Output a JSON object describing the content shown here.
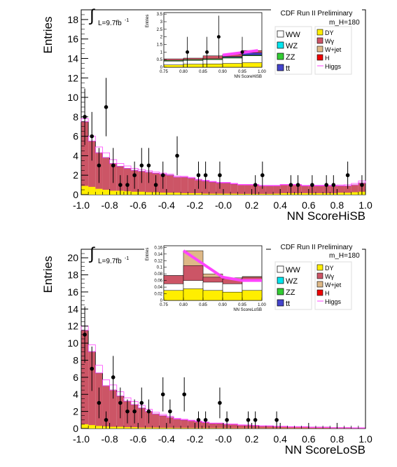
{
  "colors": {
    "WW": "#ffffff",
    "WZ": "#00e5ee",
    "ZZ": "#33cc33",
    "tt": "#4444cc",
    "DY": "#ffee00",
    "Wg": "#cc5566",
    "Wjet": "#deb887",
    "H": "#ee0000",
    "Higgs": "#ff44ff",
    "data": "#000000"
  },
  "chart_data": [
    {
      "type": "bar",
      "panel": "HiSB",
      "header": "CDF Run II Preliminary",
      "mass": "m_H=180",
      "lumi": "L=9.7fb",
      "lumi_sup": "-1",
      "xlabel": "NN ScoreHiSB",
      "ylabel": "Entries",
      "xlim": [
        -1.0,
        1.0
      ],
      "ylim": [
        0,
        19
      ],
      "x_ticks": [
        "-1.0",
        "-0.8",
        "-0.6",
        "-0.4",
        "-0.2",
        "-0.0",
        "0.2",
        "0.4",
        "0.6",
        "0.8",
        "1.0"
      ],
      "x_tick_values": [
        -1.0,
        -0.8,
        -0.6,
        -0.4,
        -0.2,
        0.0,
        0.2,
        0.4,
        0.6,
        0.8,
        1.0
      ],
      "y_ticks": [
        "0",
        "2",
        "4",
        "6",
        "8",
        "10",
        "12",
        "14",
        "16",
        "18"
      ],
      "y_tick_values": [
        0,
        2,
        4,
        6,
        8,
        10,
        12,
        14,
        16,
        18
      ],
      "bins": [
        -1.0,
        -0.95,
        -0.9,
        -0.85,
        -0.8,
        -0.75,
        -0.7,
        -0.65,
        -0.6,
        -0.55,
        -0.5,
        -0.45,
        -0.4,
        -0.35,
        -0.3,
        -0.25,
        -0.2,
        -0.15,
        -0.1,
        -0.05,
        0.0,
        0.05,
        0.1,
        0.15,
        0.2,
        0.25,
        0.3,
        0.35,
        0.4,
        0.45,
        0.5,
        0.55,
        0.6,
        0.65,
        0.7,
        0.75,
        0.8,
        0.85,
        0.9,
        0.95,
        1.0
      ],
      "bkg_total": [
        7.5,
        5.5,
        4.3,
        3.8,
        3.2,
        2.9,
        2.7,
        2.5,
        2.4,
        2.3,
        2.2,
        2.1,
        2.0,
        1.8,
        1.8,
        1.7,
        1.5,
        1.4,
        1.3,
        1.2,
        1.2,
        1.1,
        1.0,
        1.0,
        1.0,
        0.9,
        0.9,
        0.9,
        1.0,
        1.0,
        1.0,
        0.9,
        0.9,
        0.9,
        0.9,
        0.9,
        0.9,
        0.9,
        1.0,
        1.2
      ],
      "dy_stack": [
        0.9,
        0.8,
        0.6,
        0.5,
        0.4,
        0.4,
        0.35,
        0.3,
        0.3,
        0.25,
        0.25,
        0.2,
        0.2,
        0.2,
        0.15,
        0.15,
        0.15,
        0.1,
        0.1,
        0.1,
        0.1,
        0.1,
        0.08,
        0.08,
        0.08,
        0.08,
        0.08,
        0.1,
        0.15,
        0.15,
        0.15,
        0.15,
        0.15,
        0.15,
        0.15,
        0.15,
        0.2,
        0.2,
        0.25,
        0.3
      ],
      "signal": [
        0.3,
        0.5,
        0.6,
        0.5,
        0.4,
        0.3,
        0.25,
        0.2,
        0.18,
        0.15,
        0.12,
        0.12,
        0.1,
        0.1,
        0.08,
        0.08,
        0.08,
        0.08,
        0.06,
        0.06,
        0.06,
        0.06,
        0.05,
        0.05,
        0.05,
        0.05,
        0.05,
        0.05,
        0.05,
        0.05,
        0.05,
        0.05,
        0.06,
        0.06,
        0.07,
        0.08,
        0.1,
        0.12,
        0.15,
        0.2
      ],
      "data_points": [
        {
          "x": -0.975,
          "y": 8,
          "err": 2.9
        },
        {
          "x": -0.925,
          "y": 6,
          "err": 2.5
        },
        {
          "x": -0.875,
          "y": 3,
          "err": 1.8
        },
        {
          "x": -0.825,
          "y": 9,
          "err": 3.0
        },
        {
          "x": -0.775,
          "y": 3,
          "err": 1.8
        },
        {
          "x": -0.725,
          "y": 1,
          "err": 1.0
        },
        {
          "x": -0.675,
          "y": 1,
          "err": 1.0
        },
        {
          "x": -0.625,
          "y": 2,
          "err": 1.4
        },
        {
          "x": -0.575,
          "y": 3,
          "err": 1.8
        },
        {
          "x": -0.525,
          "y": 3,
          "err": 1.8
        },
        {
          "x": -0.475,
          "y": 1,
          "err": 1.0
        },
        {
          "x": -0.425,
          "y": 2,
          "err": 1.4
        },
        {
          "x": -0.325,
          "y": 4,
          "err": 2.0
        },
        {
          "x": -0.175,
          "y": 2,
          "err": 1.4
        },
        {
          "x": -0.125,
          "y": 2,
          "err": 1.4
        },
        {
          "x": -0.025,
          "y": 2,
          "err": 1.4
        },
        {
          "x": 0.225,
          "y": 1,
          "err": 1.0
        },
        {
          "x": 0.275,
          "y": 2,
          "err": 1.4
        },
        {
          "x": 0.475,
          "y": 1,
          "err": 1.0
        },
        {
          "x": 0.525,
          "y": 1,
          "err": 1.0
        },
        {
          "x": 0.625,
          "y": 1,
          "err": 1.0
        },
        {
          "x": 0.725,
          "y": 1,
          "err": 1.0
        },
        {
          "x": 0.775,
          "y": 1,
          "err": 1.0
        },
        {
          "x": 0.875,
          "y": 2,
          "err": 1.4
        },
        {
          "x": 0.975,
          "y": 1,
          "err": 1.0
        }
      ],
      "inset": {
        "xlabel": "NN ScoreHiSB",
        "ylabel": "Entries",
        "xlim": [
          0.75,
          1.0
        ],
        "ylim": [
          0,
          3.6
        ],
        "x_ticks": [
          "0.75",
          "0.80",
          "0.85",
          "0.90",
          "0.95",
          "1.00"
        ],
        "x_tick_values": [
          0.75,
          0.8,
          0.85,
          0.9,
          0.95,
          1.0
        ],
        "y_ticks": [
          "0",
          "0.5",
          "1",
          "1.5",
          "2",
          "2.5",
          "3",
          "3.5"
        ],
        "y_tick_values": [
          0,
          0.5,
          1,
          1.5,
          2,
          2.5,
          3,
          3.5
        ],
        "bins": [
          0.75,
          0.8,
          0.85,
          0.9,
          0.95,
          1.0
        ],
        "layers": [
          {
            "key": "DY",
            "top": [
              0.15,
              0.2,
              0.22,
              0.25,
              0.3
            ]
          },
          {
            "key": "WW",
            "top": [
              0.4,
              0.45,
              0.5,
              0.6,
              0.75
            ]
          },
          {
            "key": "ZZ",
            "top": [
              0.45,
              0.5,
              0.55,
              0.65,
              0.8
            ]
          },
          {
            "key": "tt",
            "top": [
              0.45,
              0.5,
              0.55,
              0.7,
              0.95
            ]
          },
          {
            "key": "Wg",
            "top": [
              0.55,
              0.6,
              0.75,
              0.85,
              1.1
            ]
          }
        ],
        "signal_line": [
          [
            0.9,
            0.8
          ],
          [
            0.93,
            0.9
          ],
          [
            0.96,
            1.0
          ],
          [
            0.99,
            1.1
          ]
        ],
        "data_points": [
          {
            "x": 0.81,
            "y": 1,
            "err": 1.0
          },
          {
            "x": 0.86,
            "y": 1,
            "err": 1.0
          },
          {
            "x": 0.89,
            "y": 2,
            "err": 1.4
          },
          {
            "x": 0.95,
            "y": 1,
            "err": 1.0
          }
        ]
      }
    },
    {
      "type": "bar",
      "panel": "LoSB",
      "header": "CDF Run II Preliminary",
      "mass": "m_H=180",
      "lumi": "L=9.7fb",
      "lumi_sup": "-1",
      "xlabel": "NN ScoreLoSB",
      "ylabel": "Entries",
      "xlim": [
        -1.0,
        1.0
      ],
      "ylim": [
        0,
        21
      ],
      "x_ticks": [
        "-1.0",
        "-0.8",
        "-0.6",
        "-0.4",
        "-0.2",
        "-0.0",
        "0.2",
        "0.4",
        "0.6",
        "0.8",
        "1.0"
      ],
      "x_tick_values": [
        -1.0,
        -0.8,
        -0.6,
        -0.4,
        -0.2,
        0.0,
        0.2,
        0.4,
        0.6,
        0.8,
        1.0
      ],
      "y_ticks": [
        "0",
        "2",
        "4",
        "6",
        "8",
        "10",
        "12",
        "14",
        "16",
        "18",
        "20"
      ],
      "y_tick_values": [
        0,
        2,
        4,
        6,
        8,
        10,
        12,
        14,
        16,
        18,
        20
      ],
      "bins": [
        -1.0,
        -0.95,
        -0.9,
        -0.85,
        -0.8,
        -0.75,
        -0.7,
        -0.65,
        -0.6,
        -0.55,
        -0.5,
        -0.45,
        -0.4,
        -0.35,
        -0.3,
        -0.25,
        -0.2,
        -0.15,
        -0.1,
        -0.05,
        0.0,
        0.05,
        0.1,
        0.15,
        0.2,
        0.25,
        0.3,
        0.35,
        0.4,
        0.45,
        0.5,
        0.55,
        0.6,
        0.65,
        0.7,
        0.75,
        0.8,
        0.85,
        0.9,
        0.95,
        1.0
      ],
      "bkg_total": [
        11.5,
        9.0,
        6.5,
        5.0,
        4.5,
        3.8,
        3.2,
        2.8,
        2.4,
        2.0,
        1.7,
        1.5,
        1.3,
        1.1,
        1.0,
        0.9,
        0.8,
        0.7,
        0.6,
        0.6,
        0.5,
        0.5,
        0.4,
        0.4,
        0.35,
        0.3,
        0.3,
        0.25,
        0.25,
        0.2,
        0.2,
        0.2,
        0.15,
        0.15,
        0.15,
        0.1,
        0.1,
        0.1,
        0.08,
        0.08
      ],
      "dy_stack": [
        0.5,
        0.4,
        0.3,
        0.25,
        0.2,
        0.2,
        0.15,
        0.15,
        0.1,
        0.1,
        0.1,
        0.08,
        0.08,
        0.06,
        0.06,
        0.05,
        0.05,
        0.05,
        0.04,
        0.04,
        0.04,
        0.03,
        0.03,
        0.03,
        0.02,
        0.02,
        0.02,
        0.02,
        0.02,
        0.02,
        0.02,
        0.02,
        0.01,
        0.01,
        0.01,
        0.01,
        0.01,
        0.01,
        0.01,
        0.01
      ],
      "signal": [
        0.5,
        0.8,
        0.9,
        0.7,
        0.6,
        0.5,
        0.4,
        0.35,
        0.3,
        0.25,
        0.2,
        0.15,
        0.12,
        0.1,
        0.08,
        0.07,
        0.06,
        0.05,
        0.04,
        0.04,
        0.03,
        0.03,
        0.03,
        0.02,
        0.02,
        0.02,
        0.02,
        0.02,
        0.01,
        0.01,
        0.01,
        0.01,
        0.01,
        0.01,
        0.01,
        0.01,
        0.01,
        0.01,
        0.01,
        0.01
      ],
      "data_points": [
        {
          "x": -0.975,
          "y": 11,
          "err": 3.3
        },
        {
          "x": -0.925,
          "y": 7,
          "err": 2.6
        },
        {
          "x": -0.875,
          "y": 3,
          "err": 1.8
        },
        {
          "x": -0.825,
          "y": 1,
          "err": 1.0
        },
        {
          "x": -0.775,
          "y": 6,
          "err": 2.5
        },
        {
          "x": -0.725,
          "y": 3,
          "err": 1.8
        },
        {
          "x": -0.675,
          "y": 2,
          "err": 1.4
        },
        {
          "x": -0.625,
          "y": 2,
          "err": 1.4
        },
        {
          "x": -0.575,
          "y": 3,
          "err": 1.8
        },
        {
          "x": -0.525,
          "y": 2,
          "err": 1.4
        },
        {
          "x": -0.425,
          "y": 4,
          "err": 2.0
        },
        {
          "x": -0.375,
          "y": 2,
          "err": 1.4
        },
        {
          "x": -0.275,
          "y": 4,
          "err": 2.0
        },
        {
          "x": -0.175,
          "y": 1,
          "err": 1.0
        },
        {
          "x": -0.125,
          "y": 1,
          "err": 1.0
        },
        {
          "x": -0.025,
          "y": 3,
          "err": 1.8
        },
        {
          "x": 0.025,
          "y": 1,
          "err": 1.0
        },
        {
          "x": 0.175,
          "y": 1,
          "err": 1.0
        },
        {
          "x": 0.225,
          "y": 1,
          "err": 1.0
        },
        {
          "x": 0.375,
          "y": 1,
          "err": 1.0
        }
      ],
      "inset": {
        "xlabel": "NN ScoreLoSB",
        "ylabel": "Entries",
        "xlim": [
          0.75,
          1.0
        ],
        "ylim": [
          0,
          0.165
        ],
        "x_ticks": [
          "0.75",
          "0.80",
          "0.85",
          "0.90",
          "0.95",
          "1.00"
        ],
        "x_tick_values": [
          0.75,
          0.8,
          0.85,
          0.9,
          0.95,
          1.0
        ],
        "y_ticks": [
          "0",
          "0.02",
          "0.04",
          "0.06",
          "0.08",
          "0.1",
          "0.12",
          "0.14",
          "0.16"
        ],
        "y_tick_values": [
          0,
          0.02,
          0.04,
          0.06,
          0.08,
          0.1,
          0.12,
          0.14,
          0.16
        ],
        "bins": [
          0.75,
          0.8,
          0.85,
          0.9,
          0.95,
          1.0
        ],
        "layers": [
          {
            "key": "DY",
            "top": [
              0.03,
              0.035,
              0.03,
              0.025,
              0.03
            ]
          },
          {
            "key": "WW",
            "top": [
              0.05,
              0.06,
              0.055,
              0.05,
              0.06
            ]
          },
          {
            "key": "Wg",
            "top": [
              0.075,
              0.105,
              0.07,
              0.065,
              0.07
            ]
          },
          {
            "key": "Wjet",
            "top": [
              0.075,
              0.15,
              0.08,
              0.068,
              0.072
            ]
          }
        ],
        "signal_line": [
          [
            0.8,
            0.15
          ],
          [
            0.85,
            0.11
          ],
          [
            0.9,
            0.07
          ],
          [
            0.95,
            0.06
          ],
          [
            1.0,
            0.06
          ]
        ],
        "data_points": []
      }
    }
  ],
  "legend_left": [
    {
      "key": "WW",
      "label": "WW"
    },
    {
      "key": "WZ",
      "label": "WZ"
    },
    {
      "key": "ZZ",
      "label": "ZZ"
    },
    {
      "key": "tt",
      "label": "tt"
    }
  ],
  "legend_right": [
    {
      "key": "DY",
      "label": "DY",
      "style": "box"
    },
    {
      "key": "Wg",
      "label": "Wγ",
      "style": "box"
    },
    {
      "key": "Wjet",
      "label": "W+jet",
      "style": "box"
    },
    {
      "key": "H",
      "label": "H",
      "style": "box"
    },
    {
      "key": "Higgs",
      "label": "Higgs",
      "style": "line"
    }
  ]
}
